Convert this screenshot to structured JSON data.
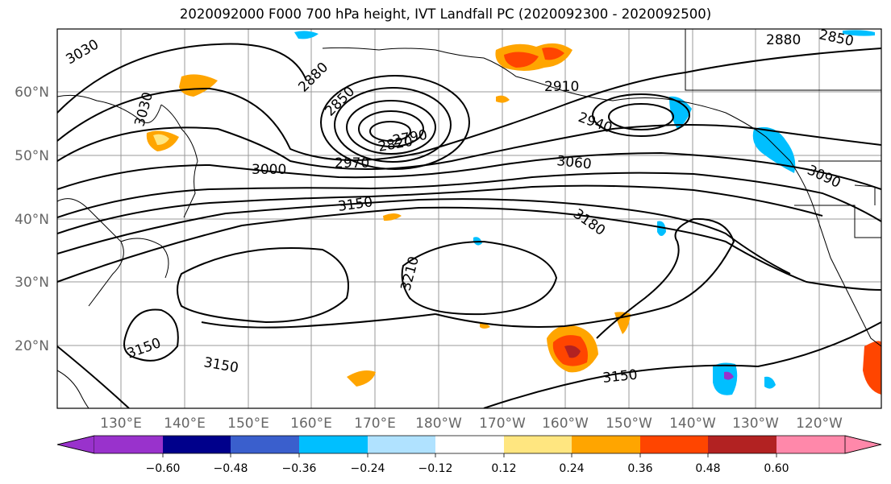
{
  "title": "2020092000 F000 700 hPa height, IVT Landfall PC (2020092300 - 2020092500)",
  "map": {
    "lat_labels": [
      "60°N",
      "50°N",
      "40°N",
      "30°N",
      "20°N"
    ],
    "lon_labels": [
      "130°E",
      "140°E",
      "150°E",
      "160°E",
      "170°E",
      "180°W",
      "170°W",
      "160°W",
      "150°W",
      "140°W",
      "130°W",
      "120°W"
    ],
    "contour_labels": [
      "3030",
      "3030",
      "2880",
      "2850",
      "2880",
      "2850",
      "2910",
      "2940",
      "3000",
      "2970",
      "2820",
      "2790",
      "3060",
      "3090",
      "3150",
      "3180",
      "3210",
      "3150",
      "3150",
      "3150"
    ],
    "colors": {
      "land_outline": "#000000",
      "grid": "#999999",
      "contour": "#000000"
    }
  },
  "colorbar": {
    "tick_labels": [
      "−0.60",
      "−0.48",
      "−0.36",
      "−0.24",
      "−0.12",
      "0.12",
      "0.24",
      "0.36",
      "0.48",
      "0.60"
    ],
    "colors": [
      "#9932cc",
      "#00008b",
      "#3a5fcd",
      "#00bfff",
      "#b0e2ff",
      "#ffffff",
      "#ffe680",
      "#ffa500",
      "#ff4500",
      "#b22222",
      "#ff88aa"
    ]
  }
}
